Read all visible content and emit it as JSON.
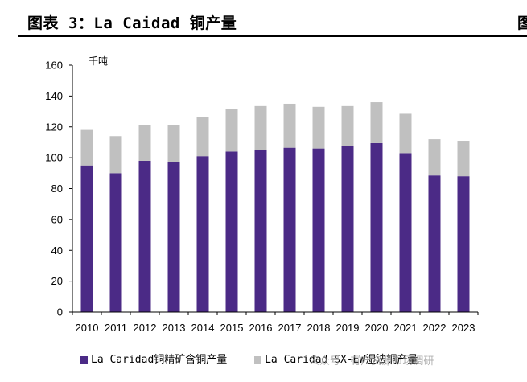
{
  "header": {
    "title": "图表 3：La Caidad 铜产量",
    "edge_glyph": "图"
  },
  "watermark": "公众号 · 有产资源市场调研",
  "chart_data": {
    "type": "bar",
    "stacked": true,
    "title": "图表 3：La Caidad 铜产量",
    "unit_label": "千吨",
    "categories": [
      "2010",
      "2011",
      "2012",
      "2013",
      "2014",
      "2015",
      "2016",
      "2017",
      "2018",
      "2019",
      "2020",
      "2021",
      "2022",
      "2023"
    ],
    "series": [
      {
        "name": "La Caridad铜精矿含铜产量",
        "color": "#4b2a86",
        "values": [
          95,
          90,
          98,
          97,
          101,
          104,
          105,
          106.5,
          106,
          107.5,
          109.5,
          103,
          88.5,
          88
        ]
      },
      {
        "name": "La Caridad SX-EW湿法铜产量",
        "color": "#c0c0c0",
        "values": [
          23,
          24,
          23,
          24,
          25.5,
          27.5,
          28.5,
          28.5,
          27,
          26,
          26.5,
          25.5,
          23.5,
          23
        ]
      }
    ],
    "ylim": [
      0,
      160
    ],
    "yticks": [
      0,
      20,
      40,
      60,
      80,
      100,
      120,
      140,
      160
    ],
    "grid": false,
    "legend": "bottom"
  }
}
